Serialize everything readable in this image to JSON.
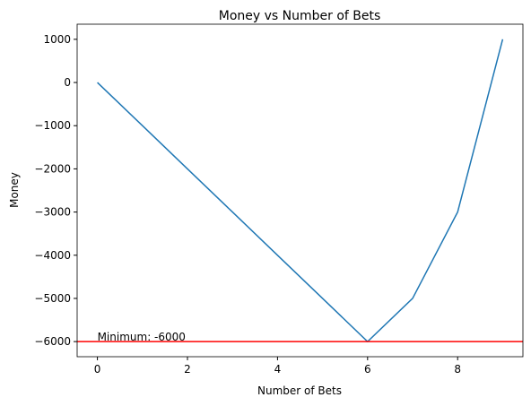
{
  "chart_data": {
    "type": "line",
    "title": "Money vs Number of Bets",
    "x_label": "Number of Bets",
    "y_label": "Money",
    "x": [
      0,
      1,
      2,
      3,
      4,
      5,
      6,
      7,
      8,
      9
    ],
    "series": [
      {
        "name": "Money",
        "color": "#1f77b4",
        "values": [
          0,
          -1000,
          -2000,
          -3000,
          -4000,
          -5000,
          -6000,
          -5000,
          -3000,
          1000
        ]
      }
    ],
    "xlim": [
      -0.45,
      9.45
    ],
    "xticks": [
      0,
      2,
      4,
      6,
      8
    ],
    "ylim": [
      -6350,
      1350
    ],
    "yticks": [
      {
        "value": -6000,
        "label": "−6000"
      },
      {
        "value": -5000,
        "label": "−5000"
      },
      {
        "value": -4000,
        "label": "−4000"
      },
      {
        "value": -3000,
        "label": "−3000"
      },
      {
        "value": -2000,
        "label": "−2000"
      },
      {
        "value": -1000,
        "label": "−1000"
      },
      0,
      1000
    ],
    "hline": {
      "value": -6000,
      "color": "red"
    },
    "annotation": {
      "text": "Minimum: -6000",
      "x": 0,
      "y": -6000
    }
  }
}
